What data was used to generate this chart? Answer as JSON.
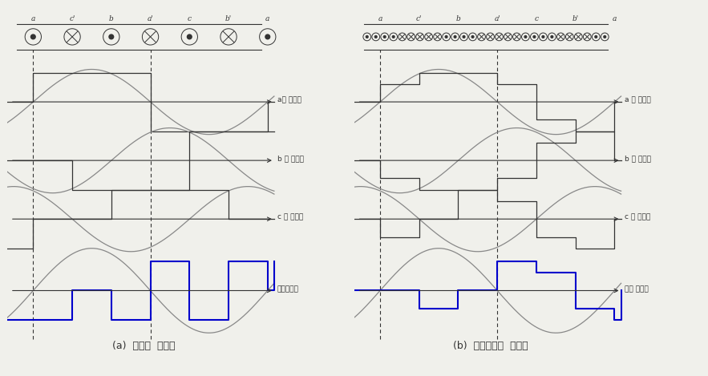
{
  "title_a": "(a)  집중권  기자력",
  "title_b": "(b)  분포단절권  기자력",
  "labels_a": [
    "a상 기자력",
    "b 상 기자력",
    "c 상 기자력",
    "합성기자력"
  ],
  "labels_b": [
    "a 상 기자력",
    "b 상 기자력",
    "c 상 기자력",
    "합성 기자력"
  ],
  "slot_labels": [
    "a",
    "c'",
    "b",
    "a'",
    "c",
    "b'",
    "a"
  ],
  "bg_color": "#f0f0eb",
  "line_color": "#333333",
  "blue_color": "#0000cc",
  "sine_color": "#888888"
}
